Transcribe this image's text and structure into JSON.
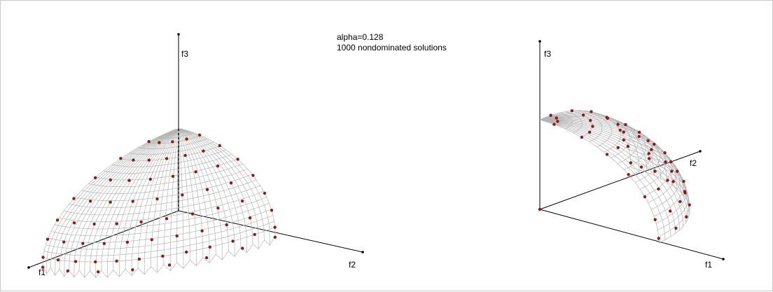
{
  "chart_data": {
    "type": "scatter3d",
    "annotation": {
      "alpha_text": "alpha=0.128",
      "count_text": "1000 nondominated solutions"
    },
    "colors": {
      "surface": "#b4b4b4",
      "points": "#8b1a1a",
      "axes": "#000000"
    },
    "views": [
      {
        "name": "front-view",
        "axis_labels": {
          "f1": "f1",
          "f2": "f2",
          "f3": "f3"
        }
      },
      {
        "name": "side-view",
        "axis_labels": {
          "f1": "f1",
          "f2": "f2",
          "f3": "f3"
        }
      }
    ]
  }
}
